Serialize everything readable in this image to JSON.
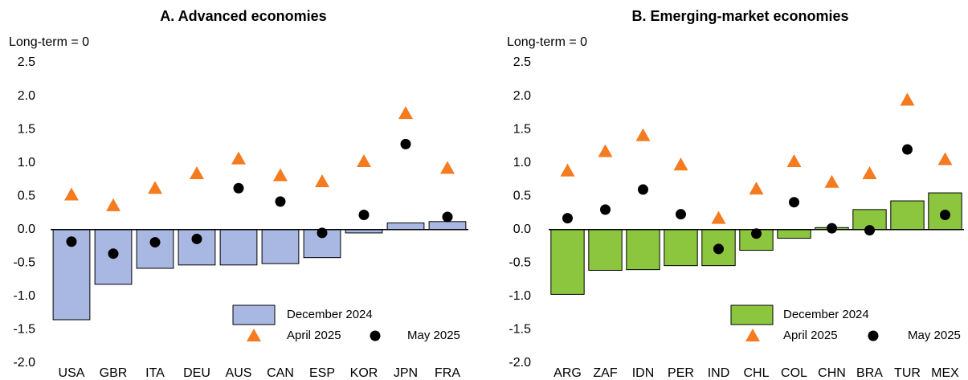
{
  "chart_data": [
    {
      "type": "bar",
      "title": "A. Advanced economies",
      "ylabel": "Long-term = 0",
      "categories": [
        "USA",
        "GBR",
        "ITA",
        "DEU",
        "AUS",
        "CAN",
        "ESP",
        "KOR",
        "JPN",
        "FRA"
      ],
      "series": [
        {
          "name": "December 2024",
          "color": "#a9b8e3",
          "marker": "bar",
          "values": [
            -1.35,
            -0.82,
            -0.58,
            -0.53,
            -0.53,
            -0.51,
            -0.42,
            -0.05,
            0.1,
            0.12
          ]
        },
        {
          "name": "April 2025",
          "color": "#f47b20",
          "marker": "triangle",
          "values": [
            0.52,
            0.36,
            0.62,
            0.84,
            1.06,
            0.81,
            0.72,
            1.02,
            1.74,
            0.92
          ]
        },
        {
          "name": "May 2025",
          "color": "#000000",
          "marker": "circle",
          "values": [
            -0.18,
            -0.36,
            -0.19,
            -0.14,
            0.62,
            0.42,
            -0.05,
            0.22,
            1.28,
            0.19
          ]
        }
      ],
      "ylim": [
        -2.0,
        2.5
      ],
      "yticks": [
        {
          "value": 2.5,
          "label": "2.5"
        },
        {
          "value": 2,
          "label": "2.0"
        },
        {
          "value": 1.5,
          "label": "1.5"
        },
        {
          "value": 1,
          "label": "1.0"
        },
        {
          "value": 0.5,
          "label": "0.5"
        },
        {
          "value": 0,
          "label": "0.0"
        },
        {
          "value": -0.5,
          "label": "-0.5"
        },
        {
          "value": -1,
          "label": "-1.0"
        },
        {
          "value": -1.5,
          "label": "-1.5"
        },
        {
          "value": -2,
          "label": "-2.0"
        }
      ]
    },
    {
      "type": "bar",
      "title": "B. Emerging-market economies",
      "ylabel": "Long-term = 0",
      "categories": [
        "ARG",
        "ZAF",
        "IDN",
        "PER",
        "IND",
        "CHL",
        "COL",
        "CHN",
        "BRA",
        "TUR",
        "MEX"
      ],
      "series": [
        {
          "name": "December 2024",
          "color": "#8cc63f",
          "marker": "bar",
          "values": [
            -0.97,
            -0.61,
            -0.6,
            -0.54,
            -0.54,
            -0.31,
            -0.13,
            0.03,
            0.3,
            0.43,
            0.55
          ]
        },
        {
          "name": "April 2025",
          "color": "#f47b20",
          "marker": "triangle",
          "values": [
            0.88,
            1.17,
            1.41,
            0.97,
            0.17,
            0.61,
            1.02,
            0.71,
            0.84,
            1.94,
            1.05
          ]
        },
        {
          "name": "May 2025",
          "color": "#000000",
          "marker": "circle",
          "values": [
            0.17,
            0.3,
            0.6,
            0.23,
            -0.29,
            -0.06,
            0.41,
            0.02,
            -0.01,
            1.2,
            0.22
          ]
        }
      ],
      "ylim": [
        -2.0,
        2.5
      ],
      "yticks": [
        {
          "value": 2.5,
          "label": "2.5"
        },
        {
          "value": 2,
          "label": "2.0"
        },
        {
          "value": 1.5,
          "label": "1.5"
        },
        {
          "value": 1,
          "label": "1.0"
        },
        {
          "value": 0.5,
          "label": "0.5"
        },
        {
          "value": 0,
          "label": "0.0"
        },
        {
          "value": -0.5,
          "label": "-0.5"
        },
        {
          "value": -1,
          "label": "-1.0"
        },
        {
          "value": -1.5,
          "label": "-1.5"
        },
        {
          "value": -2,
          "label": "-2.0"
        }
      ]
    }
  ]
}
